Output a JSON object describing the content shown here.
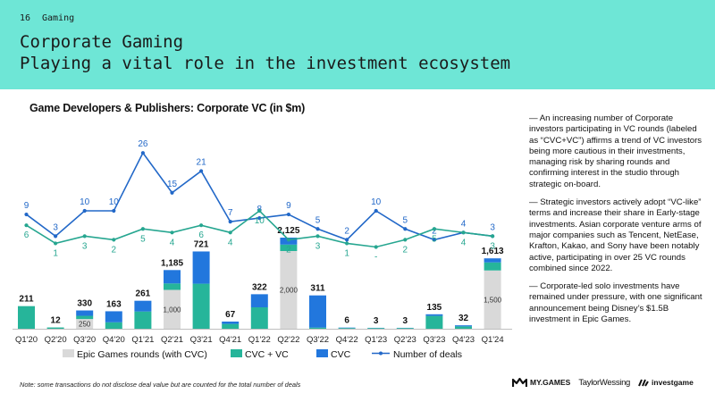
{
  "header": {
    "page_number": "16",
    "section": "Gaming",
    "title_line1": "Corporate Gaming",
    "title_line2": "Playing a vital role in the investment ecosystem",
    "background_color": "#6ee6d6"
  },
  "chart_title": "Game Developers & Publishers: Corporate VC (in $m)",
  "chart_data": {
    "type": "bar",
    "stacked": true,
    "title": "Game Developers & Publishers: Corporate VC (in $m)",
    "categories": [
      "Q1'20",
      "Q2'20",
      "Q3'20",
      "Q4'20",
      "Q1'21",
      "Q2'21",
      "Q3'21",
      "Q4'21",
      "Q1'22",
      "Q2'22",
      "Q3'22",
      "Q4'22",
      "Q1'23",
      "Q2'23",
      "Q3'23",
      "Q4'23",
      "Q1'24"
    ],
    "totals": [
      "211",
      "12",
      "330",
      "163",
      "261",
      "1,185",
      "721",
      "67",
      "322",
      "2,125",
      "311",
      "6",
      "3",
      "3",
      "135",
      "32",
      "1,613"
    ],
    "total_values": [
      211,
      12,
      330,
      163,
      261,
      1185,
      721,
      67,
      322,
      2125,
      311,
      6,
      3,
      3,
      135,
      32,
      1613
    ],
    "series": [
      {
        "name": "Epic Games rounds (with CVC)",
        "color": "#d9d9d9",
        "values": [
          0,
          0,
          250,
          0,
          0,
          1000,
          0,
          0,
          0,
          2000,
          0,
          0,
          0,
          0,
          0,
          0,
          1500
        ],
        "labels": [
          "",
          "",
          "250",
          "",
          "",
          "1,000",
          "",
          "",
          "",
          "2,000",
          "",
          "",
          "",
          "",
          "",
          "",
          "1,500"
        ]
      },
      {
        "name": "CVC + VC",
        "color": "#26b59a",
        "values": [
          211,
          12,
          30,
          60,
          161,
          60,
          420,
          45,
          200,
          60,
          11,
          2,
          1,
          1,
          120,
          22,
          75
        ]
      },
      {
        "name": "CVC",
        "color": "#2277dd",
        "values": [
          0,
          0,
          50,
          103,
          100,
          125,
          301,
          22,
          122,
          65,
          300,
          4,
          2,
          2,
          15,
          10,
          38
        ]
      }
    ],
    "line_series": [
      {
        "name": "Number of deals (total)",
        "color": "#2268c8",
        "values": [
          9,
          3,
          10,
          10,
          26,
          15,
          21,
          7,
          8,
          9,
          5,
          2,
          10,
          5,
          2,
          4,
          3
        ],
        "labels": [
          "9",
          "3",
          "10",
          "10",
          "26",
          "15",
          "21",
          "7",
          "8",
          "9",
          "5",
          "2",
          "10",
          "5",
          "2",
          "4",
          "3"
        ]
      },
      {
        "name": "Number of deals (CVC + VC)",
        "color": "#26a690",
        "values": [
          6,
          1,
          3,
          2,
          5,
          4,
          6,
          4,
          10,
          2,
          3,
          1,
          0,
          2,
          5,
          4,
          3
        ],
        "labels": [
          "6",
          "1",
          "3",
          "2",
          "5",
          "4",
          "6",
          "4",
          "10",
          "2",
          "3",
          "1",
          "-",
          "2",
          "5",
          "4",
          "3"
        ]
      }
    ],
    "legend": [
      {
        "label": "Epic Games rounds (with CVC)",
        "kind": "bar",
        "color": "#d9d9d9"
      },
      {
        "label": "CVC + VC",
        "kind": "bar",
        "color": "#26b59a"
      },
      {
        "label": "CVC",
        "kind": "bar",
        "color": "#2277dd"
      },
      {
        "label": "Number of deals",
        "kind": "line",
        "color": "#2268c8"
      }
    ],
    "legend_position": "bottom"
  },
  "notes": [
    "— An increasing number of Corporate investors participating in VC rounds (labeled as “CVC+VC”) affirms a trend of VC investors being more cautious in their investments, managing risk by sharing rounds and confirming interest in the studio through strategic on-board.",
    "— Strategic investors actively adopt “VC-like” terms and increase their share in Early-stage investments. Asian corporate venture arms of major companies such as Tencent, NetEase, Krafton, Kakao, and Sony have been notably active, participating in over 25 VC rounds combined since 2022.",
    "— Corporate-led solo investments have remained under pressure, with one significant announcement being Disney’s $1.5B investment in Epic Games."
  ],
  "footnote": "Note: some transactions do not disclose deal value but are counted for the total number of deals",
  "logos": {
    "mygames": "MY.GAMES",
    "taylorwessing": "TaylorWessing",
    "investgame": "investgame"
  }
}
